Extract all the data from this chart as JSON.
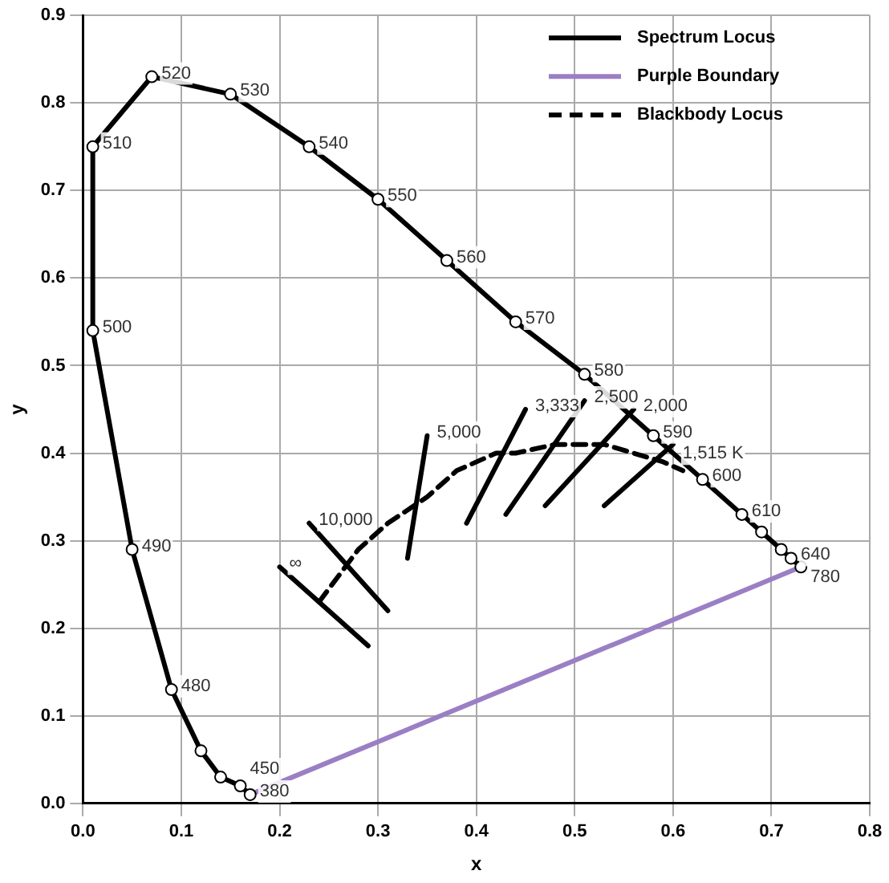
{
  "chart_data": {
    "type": "line",
    "xlabel": "x",
    "ylabel": "y",
    "xlim": [
      0,
      0.8
    ],
    "ylim": [
      0,
      0.9
    ],
    "xticks": [
      {
        "value": 0,
        "label": "0.0"
      },
      0.1,
      0.2,
      0.3,
      0.4,
      0.5,
      0.6,
      0.7,
      0.8
    ],
    "yticks": [
      {
        "value": 0,
        "label": "0.0"
      },
      0.1,
      0.2,
      0.3,
      0.4,
      0.5,
      0.6,
      0.7,
      0.8,
      0.9
    ],
    "grid": true,
    "legend": "top right",
    "series": [
      {
        "name": "Spectrum Locus",
        "color": "#000000",
        "line_style": "solid",
        "marker": "circle",
        "x": [
          0.17,
          0.16,
          0.14,
          0.12,
          0.09,
          0.05,
          0.01,
          0.01,
          0.07,
          0.15,
          0.23,
          0.3,
          0.37,
          0.44,
          0.51,
          0.58,
          0.63,
          0.67,
          0.69,
          0.71,
          0.72,
          0.73
        ],
        "values": [
          0.01,
          0.02,
          0.03,
          0.06,
          0.13,
          0.29,
          0.54,
          0.75,
          0.83,
          0.81,
          0.75,
          0.69,
          0.62,
          0.55,
          0.49,
          0.42,
          0.37,
          0.33,
          0.31,
          0.29,
          0.28,
          0.27
        ]
      },
      {
        "name": "Purple Boundary",
        "color": "#9b7fc4",
        "line_style": "solid",
        "marker": "none",
        "x": [
          0.17,
          0.73
        ],
        "values": [
          0.01,
          0.27
        ]
      },
      {
        "name": "Blackbody Locus",
        "color": "#000000",
        "line_style": "dashed",
        "marker": "none",
        "x": [
          0.24,
          0.26,
          0.28,
          0.31,
          0.35,
          0.38,
          0.42,
          0.44,
          0.48,
          0.53,
          0.56,
          0.59,
          0.61
        ],
        "values": [
          0.23,
          0.26,
          0.29,
          0.32,
          0.35,
          0.38,
          0.4,
          0.4,
          0.41,
          0.41,
          0.4,
          0.39,
          0.38
        ]
      },
      {
        "color": "#000000",
        "line_style": "solid",
        "marker": "none",
        "x": [
          0.2,
          0.29
        ],
        "values": [
          0.27,
          0.18
        ]
      },
      {
        "color": "#000000",
        "line_style": "solid",
        "marker": "none",
        "x": [
          0.23,
          0.31
        ],
        "values": [
          0.32,
          0.22
        ]
      },
      {
        "color": "#000000",
        "line_style": "solid",
        "marker": "none",
        "x": [
          0.35,
          0.33
        ],
        "values": [
          0.42,
          0.28
        ]
      },
      {
        "color": "#000000",
        "line_style": "solid",
        "marker": "none",
        "x": [
          0.45,
          0.39
        ],
        "values": [
          0.45,
          0.32
        ]
      },
      {
        "color": "#000000",
        "line_style": "solid",
        "marker": "none",
        "x": [
          0.51,
          0.43
        ],
        "values": [
          0.46,
          0.33
        ]
      },
      {
        "color": "#000000",
        "line_style": "solid",
        "marker": "none",
        "x": [
          0.56,
          0.47
        ],
        "values": [
          0.45,
          0.34
        ]
      },
      {
        "color": "#000000",
        "line_style": "solid",
        "marker": "none",
        "x": [
          0.6,
          0.53
        ],
        "values": [
          0.41,
          0.34
        ]
      }
    ],
    "annotations": [
      {
        "text": "380",
        "x": 0.17,
        "y": 0.01
      },
      {
        "text": "450",
        "x": 0.16,
        "y": 0.02
      },
      {
        "text": "480",
        "x": 0.09,
        "y": 0.13
      },
      {
        "text": "490",
        "x": 0.05,
        "y": 0.29
      },
      {
        "text": "500",
        "x": 0.01,
        "y": 0.54
      },
      {
        "text": "510",
        "x": 0.01,
        "y": 0.75
      },
      {
        "text": "520",
        "x": 0.07,
        "y": 0.83
      },
      {
        "text": "530",
        "x": 0.15,
        "y": 0.81
      },
      {
        "text": "540",
        "x": 0.23,
        "y": 0.75
      },
      {
        "text": "550",
        "x": 0.3,
        "y": 0.69
      },
      {
        "text": "560",
        "x": 0.37,
        "y": 0.62
      },
      {
        "text": "570",
        "x": 0.44,
        "y": 0.55
      },
      {
        "text": "580",
        "x": 0.51,
        "y": 0.49
      },
      {
        "text": "590",
        "x": 0.58,
        "y": 0.42
      },
      {
        "text": "600",
        "x": 0.63,
        "y": 0.37
      },
      {
        "text": "610",
        "x": 0.67,
        "y": 0.33
      },
      {
        "text": "640",
        "x": 0.72,
        "y": 0.28
      },
      {
        "text": "780",
        "x": 0.73,
        "y": 0.27
      },
      {
        "text": "∞",
        "x": 0.2,
        "y": 0.27
      },
      {
        "text": "10,000",
        "x": 0.23,
        "y": 0.32
      },
      {
        "text": "5,000",
        "x": 0.35,
        "y": 0.42
      },
      {
        "text": "3,333",
        "x": 0.45,
        "y": 0.45
      },
      {
        "text": "2,500",
        "x": 0.51,
        "y": 0.46
      },
      {
        "text": "2,000",
        "x": 0.56,
        "y": 0.45
      },
      {
        "text": "1,515 K",
        "x": 0.6,
        "y": 0.41
      }
    ]
  }
}
